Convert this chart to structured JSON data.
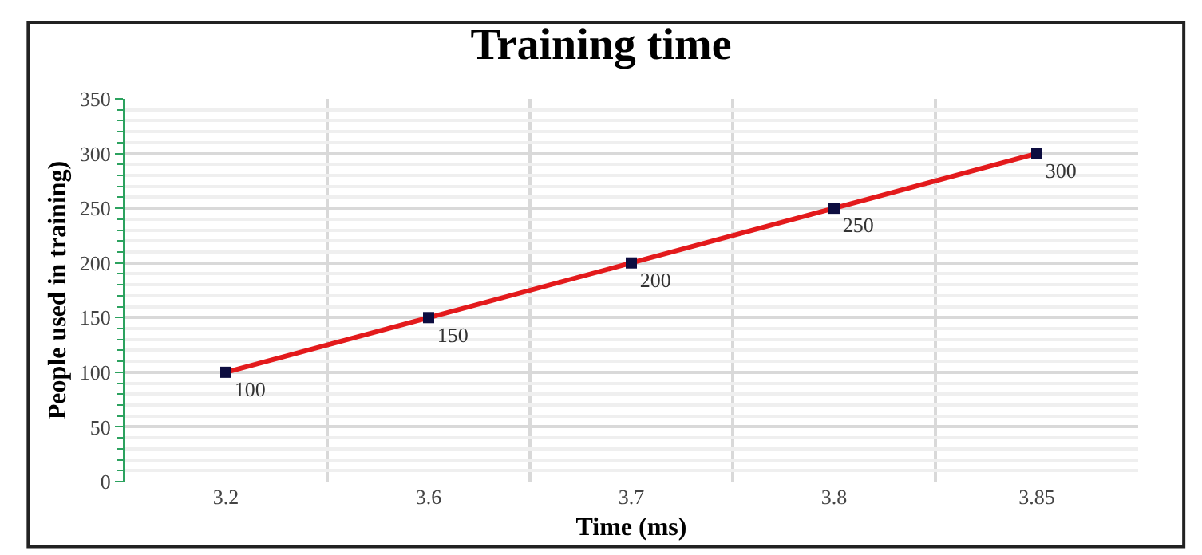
{
  "chart_data": {
    "type": "line",
    "title": "Training time",
    "xlabel": "Time (ms)",
    "ylabel": "People used in training)",
    "categories": [
      "3.2",
      "3.6",
      "3.7",
      "3.8",
      "3.85"
    ],
    "series": [
      {
        "color": "#e31a1c",
        "values": [
          100,
          150,
          200,
          250,
          300
        ]
      }
    ],
    "ylim": [
      0,
      350
    ],
    "yticks": [
      0,
      50,
      100,
      150,
      200,
      250,
      300,
      350
    ],
    "grid": true,
    "marker": "square",
    "line_style": "solid",
    "data_labels": true
  }
}
